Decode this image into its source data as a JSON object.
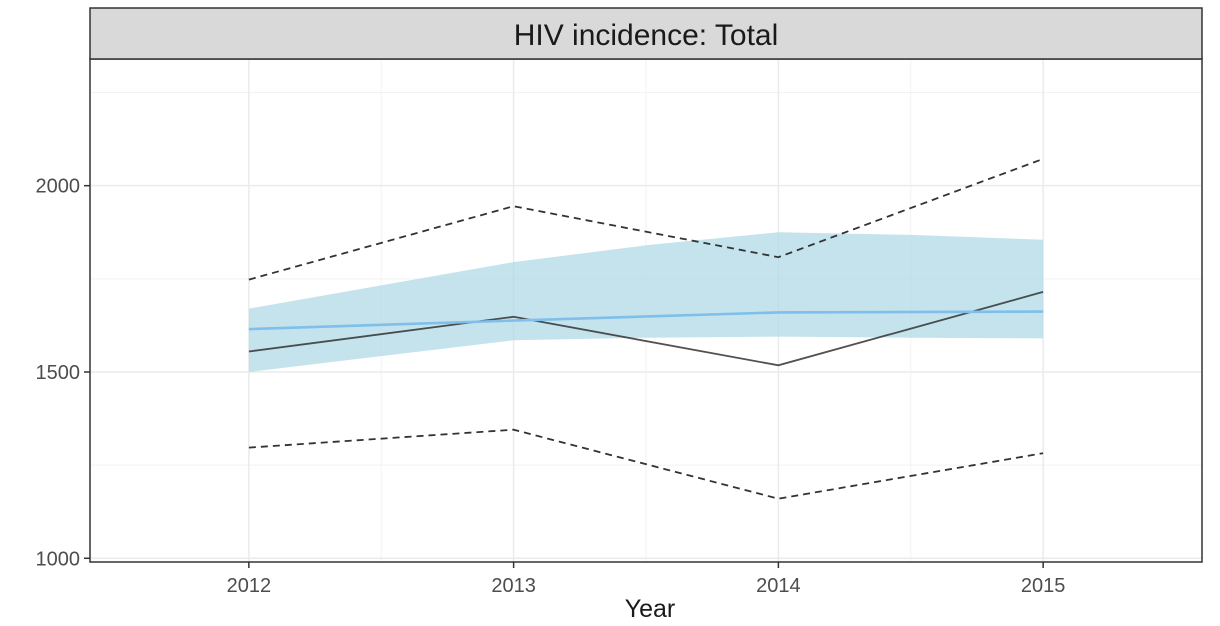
{
  "chart_data": {
    "type": "line",
    "title": "HIV incidence: Total",
    "xlabel": "Year",
    "ylabel": "",
    "x": [
      2012,
      2013,
      2014,
      2015
    ],
    "xlim": [
      2011.4,
      2015.6
    ],
    "ylim": [
      990,
      2340
    ],
    "yticks": [
      1000,
      1500,
      2000
    ],
    "grid": true,
    "series": [
      {
        "kind": "observed",
        "color": "#333333",
        "dashed": false,
        "values": [
          1555,
          1648,
          1518,
          1715
        ]
      },
      {
        "kind": "observed-upper",
        "color": "#333333",
        "dashed": true,
        "values": [
          1748,
          1945,
          1808,
          2072
        ]
      },
      {
        "kind": "observed-lower",
        "color": "#333333",
        "dashed": true,
        "values": [
          1297,
          1345,
          1160,
          1282
        ]
      },
      {
        "kind": "model-fit",
        "color": "#7fbfea",
        "dashed": false,
        "values": [
          1615,
          1638,
          1660,
          1662
        ]
      }
    ],
    "band": {
      "color": "#add8e6",
      "x": [
        2012,
        2013,
        2013.5,
        2014,
        2014.5,
        2015
      ],
      "upper": [
        1670,
        1795,
        1840,
        1875,
        1868,
        1855
      ],
      "lower": [
        1500,
        1585,
        1592,
        1595,
        1592,
        1590
      ]
    }
  }
}
